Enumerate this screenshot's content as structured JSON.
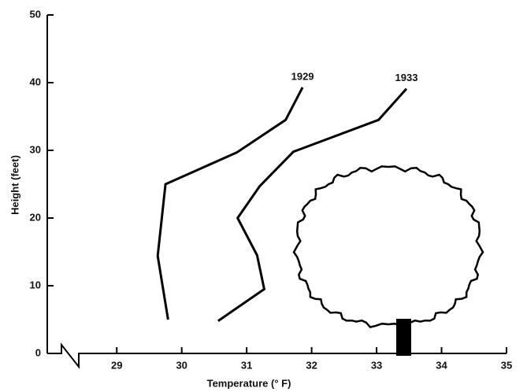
{
  "chart_data": {
    "type": "line",
    "xlabel": "Temperature (° F)",
    "ylabel": "Height (feet)",
    "series": [
      {
        "name": "1929",
        "color": "#000000",
        "x": [
          29.79,
          29.63,
          29.75,
          30.85,
          31.6,
          31.86
        ],
        "values": [
          5,
          14.4,
          25,
          29.7,
          34.5,
          39.3
        ]
      },
      {
        "name": "1933",
        "color": "#000000",
        "x": [
          30.56,
          31.27,
          31.16,
          30.86,
          31.2,
          31.72,
          33.03,
          33.46
        ],
        "values": [
          4.8,
          9.5,
          14.5,
          20,
          24.7,
          29.8,
          34.5,
          39.1
        ]
      }
    ],
    "xlim": [
      27.93,
      35
    ],
    "xticks": [
      29,
      30,
      31,
      32,
      33,
      34,
      35
    ],
    "ylim": [
      0,
      50
    ],
    "yticks": [
      0,
      10,
      20,
      30,
      40,
      50
    ]
  }
}
